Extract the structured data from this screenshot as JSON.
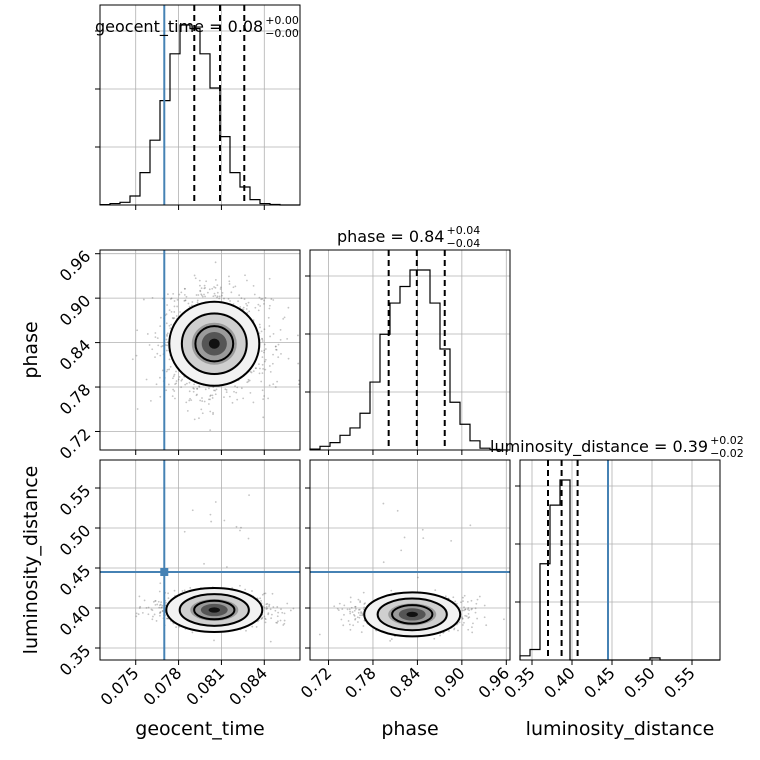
{
  "chart_data": {
    "type": "corner",
    "parameters": [
      {
        "name": "geocent_time",
        "axis_label": "geocent_time",
        "title": "geocent_time = 0.08",
        "title_sup": "+0.00",
        "title_sub": "−0.00",
        "range": [
          0.0725,
          0.0865
        ],
        "ticks": [
          0.075,
          0.078,
          0.081,
          0.084
        ],
        "tick_labels": [
          "0.075",
          "0.078",
          "0.081",
          "0.084"
        ],
        "truth": 0.077,
        "quantiles": [
          0.0791,
          0.0809,
          0.0826
        ],
        "hist_bins": [
          0.0725,
          0.0865,
          20
        ],
        "hist_counts": [
          0.2,
          0.8,
          1.5,
          5,
          18,
          36,
          58,
          84,
          100,
          98,
          84,
          65,
          38,
          18,
          10,
          3,
          0.8,
          0.3,
          0,
          0
        ]
      },
      {
        "name": "phase",
        "axis_label": "phase",
        "title": "phase = 0.84",
        "title_sup": "+0.04",
        "title_sub": "−0.04",
        "range": [
          0.695,
          0.965
        ],
        "ticks": [
          0.72,
          0.78,
          0.84,
          0.9,
          0.96
        ],
        "tick_labels": [
          "0.72",
          "0.78",
          "0.84",
          "0.90",
          "0.96"
        ],
        "truth": null,
        "quantiles": [
          0.8012,
          0.8392,
          0.8769
        ],
        "hist_bins": [
          0.695,
          0.965,
          20
        ],
        "hist_counts": [
          0.5,
          2,
          4,
          8,
          12,
          20,
          37,
          63,
          80,
          89,
          98,
          98,
          80,
          55,
          26,
          14,
          5,
          1,
          0.3,
          0
        ]
      },
      {
        "name": "luminosity_distance",
        "axis_label": "luminosity_distance",
        "title": "luminosity_distance = 0.39",
        "title_sup": "+0.02",
        "title_sub": "−0.02",
        "range": [
          0.335,
          0.585
        ],
        "ticks": [
          0.35,
          0.4,
          0.45,
          0.5,
          0.55
        ],
        "tick_labels": [
          "0.35",
          "0.40",
          "0.45",
          "0.50",
          "0.55"
        ],
        "truth": 0.445,
        "quantiles": [
          0.37,
          0.387,
          0.407
        ],
        "hist_bins": [
          0.335,
          0.585,
          20
        ],
        "hist_counts": [
          2,
          5,
          46,
          74,
          86,
          0,
          0,
          0,
          0,
          0,
          0,
          0,
          0,
          1,
          0,
          0,
          0,
          0,
          0,
          0
        ]
      }
    ],
    "truth_point": {
      "geocent_time": 0.077,
      "luminosity_distance": 0.445
    },
    "peaks_2d": [
      {
        "x": "geocent_time",
        "y": "phase",
        "center": [
          0.0805,
          0.8385
        ]
      },
      {
        "x": "geocent_time",
        "y": "luminosity_distance",
        "center": [
          0.0805,
          0.3975
        ]
      },
      {
        "x": "phase",
        "y": "luminosity_distance",
        "center": [
          0.833,
          0.392
        ]
      }
    ]
  }
}
